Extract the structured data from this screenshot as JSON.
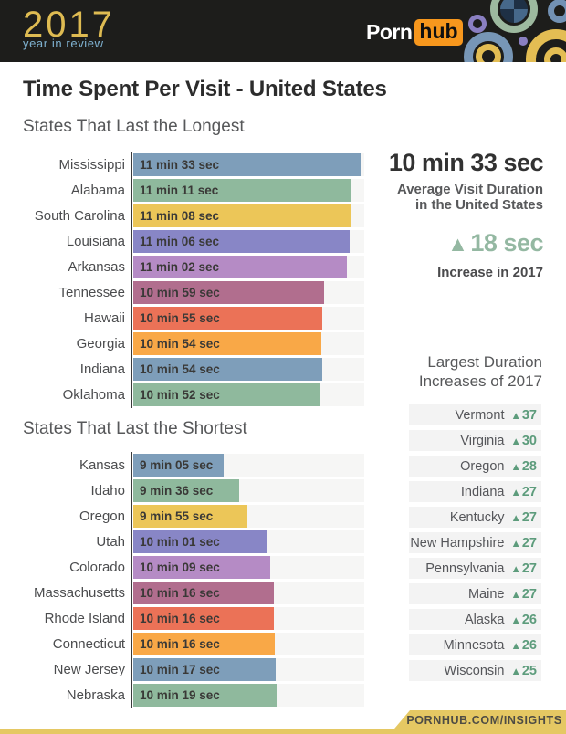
{
  "header": {
    "year": "2017",
    "tagline": "year in review",
    "brand_porn": "Porn",
    "brand_hub": "hub"
  },
  "title": "Time Spent Per Visit - United States",
  "colors": {
    "header_bg": "#1d1d1b",
    "logo_gold": "#debb52",
    "logo_lightblue": "#7fb2d1",
    "pornhub_orange": "#f7971d",
    "sage_accent": "#94b8a2",
    "list_green": "#5d9c7c",
    "footer_gold": "#e5c863"
  },
  "chart_data": [
    {
      "type": "bar",
      "orientation": "horizontal",
      "title": "States That Last the Longest",
      "categories": [
        "Mississippi",
        "Alabama",
        "South Carolina",
        "Louisiana",
        "Arkansas",
        "Tennessee",
        "Hawaii",
        "Georgia",
        "Indiana",
        "Oklahoma"
      ],
      "values_label": [
        "11 min 33 sec",
        "11 min 11 sec",
        "11 min 08 sec",
        "11 min 06 sec",
        "11 min 02 sec",
        "10 min 59 sec",
        "10 min 55 sec",
        "10 min 54 sec",
        "10 min 54 sec",
        "10 min 52 sec"
      ],
      "values_seconds": [
        693,
        671,
        668,
        666,
        662,
        659,
        655,
        654,
        654,
        652
      ],
      "bar_width_pct": [
        98.4,
        94.5,
        94.5,
        93.7,
        92.5,
        82.7,
        81.9,
        81.5,
        81.9,
        81.1
      ],
      "bar_colors": [
        "#7e9eba",
        "#8fb99d",
        "#ecc658",
        "#8886c6",
        "#b58bc5",
        "#b16e8e",
        "#eb7257",
        "#f9a847",
        "#7e9eba",
        "#8fb99d"
      ]
    },
    {
      "type": "bar",
      "orientation": "horizontal",
      "title": "States That Last the Shortest",
      "categories": [
        "Kansas",
        "Idaho",
        "Oregon",
        "Utah",
        "Colorado",
        "Massachusetts",
        "Rhode Island",
        "Connecticut",
        "New Jersey",
        "Nebraska"
      ],
      "values_label": [
        "9 min 05 sec",
        "9 min 36 sec",
        "9 min 55 sec",
        "10 min 01 sec",
        "10 min 09 sec",
        "10 min 16 sec",
        "10 min 16 sec",
        "10 min 16 sec",
        "10 min 17 sec",
        "10 min 19 sec"
      ],
      "values_seconds": [
        545,
        576,
        595,
        601,
        609,
        616,
        616,
        616,
        617,
        619
      ],
      "bar_width_pct": [
        39.0,
        45.7,
        49.6,
        58.3,
        59.4,
        61.0,
        61.0,
        61.4,
        61.8,
        62.2
      ],
      "bar_colors": [
        "#7e9eba",
        "#8fb99d",
        "#ecc658",
        "#8886c6",
        "#b58bc5",
        "#b16e8e",
        "#eb7257",
        "#f9a847",
        "#7e9eba",
        "#8fb99d"
      ]
    },
    {
      "type": "table",
      "title": "Largest Duration Increases of 2017",
      "unit": "seconds increase",
      "rows": [
        {
          "state": "Vermont",
          "increase_sec": 37
        },
        {
          "state": "Virginia",
          "increase_sec": 30
        },
        {
          "state": "Oregon",
          "increase_sec": 28
        },
        {
          "state": "Indiana",
          "increase_sec": 27
        },
        {
          "state": "Kentucky",
          "increase_sec": 27
        },
        {
          "state": "New Hampshire",
          "increase_sec": 27
        },
        {
          "state": "Pennsylvania",
          "increase_sec": 27
        },
        {
          "state": "Maine",
          "increase_sec": 27
        },
        {
          "state": "Alaska",
          "increase_sec": 26
        },
        {
          "state": "Minnesota",
          "increase_sec": 26
        },
        {
          "state": "Wisconsin",
          "increase_sec": 25
        }
      ]
    }
  ],
  "sidebar": {
    "avg_value": "10 min 33 sec",
    "avg_label_line1": "Average Visit Duration",
    "avg_label_line2": "in the United States",
    "increase_triangle": "▲",
    "increase_value": "18 sec",
    "increase_label": "Increase in 2017",
    "list_title_line1": "Largest Duration",
    "list_title_line2": "Increases of 2017"
  },
  "footer": {
    "url": "PORNHUB.COM/INSIGHTS"
  }
}
